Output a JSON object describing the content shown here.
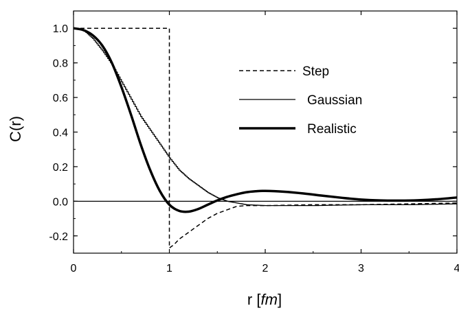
{
  "chart_data": {
    "type": "line",
    "xlabel_main": "r",
    "xlabel_unit": "fm",
    "ylabel": "C(r)",
    "xlim": [
      0,
      4
    ],
    "ylim": [
      -0.3,
      1.1
    ],
    "x_ticks": [
      "0",
      "1",
      "2",
      "3",
      "4"
    ],
    "y_ticks": [
      "-0.2",
      "0.0",
      "0.2",
      "0.4",
      "0.6",
      "0.8",
      "1.0"
    ],
    "y_tick_values": [
      -0.2,
      0.0,
      0.2,
      0.4,
      0.6,
      0.8,
      1.0
    ],
    "x_tick_values": [
      0,
      1,
      2,
      3,
      4
    ],
    "grid": false,
    "legend_position": "upper-right",
    "series": [
      {
        "name": "Step",
        "style": "dashed",
        "x": [
          0,
          0.5,
          1.0,
          1.0,
          1.05,
          1.1,
          1.2,
          1.3,
          1.4,
          1.5,
          1.6,
          1.7,
          1.8,
          2.0,
          2.5,
          3.0,
          3.5,
          4.0
        ],
        "y": [
          1.0,
          1.0,
          1.0,
          -0.27,
          -0.25,
          -0.22,
          -0.18,
          -0.14,
          -0.1,
          -0.07,
          -0.05,
          -0.03,
          -0.025,
          -0.025,
          -0.02,
          -0.02,
          -0.015,
          -0.01
        ]
      },
      {
        "name": "Gaussian",
        "style": "thin-step",
        "x": [
          0,
          0.1,
          0.2,
          0.3,
          0.4,
          0.5,
          0.6,
          0.7,
          0.8,
          0.9,
          1.0,
          1.1,
          1.2,
          1.3,
          1.4,
          1.5,
          1.6,
          1.7,
          1.8,
          2.0,
          2.5,
          3.0,
          3.5,
          4.0
        ],
        "y": [
          1.0,
          0.99,
          0.94,
          0.87,
          0.79,
          0.69,
          0.59,
          0.49,
          0.41,
          0.33,
          0.25,
          0.18,
          0.13,
          0.09,
          0.05,
          0.02,
          0.0,
          -0.01,
          -0.02,
          -0.025,
          -0.025,
          -0.02,
          -0.02,
          -0.015
        ]
      },
      {
        "name": "Realistic",
        "style": "thick",
        "x": [
          0,
          0.1,
          0.2,
          0.3,
          0.4,
          0.5,
          0.6,
          0.7,
          0.8,
          0.9,
          1.0,
          1.1,
          1.2,
          1.3,
          1.4,
          1.5,
          1.6,
          1.7,
          1.8,
          1.9,
          2.0,
          2.2,
          2.4,
          2.6,
          2.8,
          3.0,
          3.2,
          3.4,
          3.6,
          3.8,
          4.0
        ],
        "y": [
          1.0,
          0.99,
          0.96,
          0.9,
          0.8,
          0.66,
          0.5,
          0.33,
          0.18,
          0.06,
          -0.02,
          -0.055,
          -0.06,
          -0.045,
          -0.02,
          0.005,
          0.025,
          0.04,
          0.052,
          0.058,
          0.06,
          0.055,
          0.045,
          0.032,
          0.02,
          0.01,
          0.005,
          0.004,
          0.006,
          0.012,
          0.022
        ]
      }
    ]
  }
}
